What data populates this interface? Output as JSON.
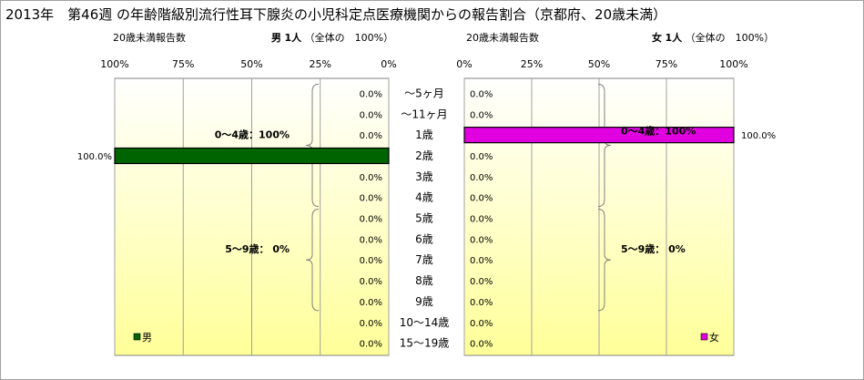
{
  "title": "2013年　第46週 の年齢階級別流行性耳下腺炎の小児科定点医療機関からの報告割合（京都府、20歳未満）",
  "left_header": {
    "label": "20歳未満報告数",
    "sex": "男",
    "count": "1人",
    "total": "（全体の　100%）"
  },
  "right_header": {
    "label": "20歳未満報告数",
    "sex": "女",
    "count": "1人",
    "total": "（全体の　100%）"
  },
  "chart_data": {
    "type": "bar",
    "orientation": "horizontal",
    "categories": [
      "～5ヶ月",
      "～11ヶ月",
      "1歳",
      "2歳",
      "3歳",
      "4歳",
      "5歳",
      "6歳",
      "7歳",
      "8歳",
      "9歳",
      "10～14歳",
      "15～19歳"
    ],
    "xlim": [
      0,
      100
    ],
    "xticks": [
      "0%",
      "25%",
      "50%",
      "75%",
      "100%"
    ],
    "left_xticks": [
      "100%",
      "75%",
      "50%",
      "25%",
      "0%"
    ],
    "series": [
      {
        "name": "男",
        "color": "#006400",
        "values": [
          0,
          0,
          0,
          100,
          0,
          0,
          0,
          0,
          0,
          0,
          0,
          0,
          0
        ],
        "labels": [
          "0.0%",
          "0.0%",
          "0.0%",
          "100.0%",
          "0.0%",
          "0.0%",
          "0.0%",
          "0.0%",
          "0.0%",
          "0.0%",
          "0.0%",
          "0.0%",
          "0.0%"
        ]
      },
      {
        "name": "女",
        "color": "#e000e0",
        "values": [
          0,
          0,
          100,
          0,
          0,
          0,
          0,
          0,
          0,
          0,
          0,
          0,
          0
        ],
        "labels": [
          "0.0%",
          "0.0%",
          "100.0%",
          "0.0%",
          "0.0%",
          "0.0%",
          "0.0%",
          "0.0%",
          "0.0%",
          "0.0%",
          "0.0%",
          "0.0%",
          "0.0%"
        ]
      }
    ],
    "group_annotations": {
      "left": [
        {
          "text": "0～4歳：100%",
          "from": 0,
          "to": 5
        },
        {
          "text": "5～9歳：  0%",
          "from": 6,
          "to": 10
        }
      ],
      "right": [
        {
          "text": "0～4歳：100%",
          "from": 0,
          "to": 5
        },
        {
          "text": "5～9歳：  0%",
          "from": 6,
          "to": 10
        }
      ]
    },
    "legend": {
      "left": "男",
      "right": "女"
    },
    "background": {
      "top": "#ffffff",
      "bottom": "#ffff99"
    }
  }
}
